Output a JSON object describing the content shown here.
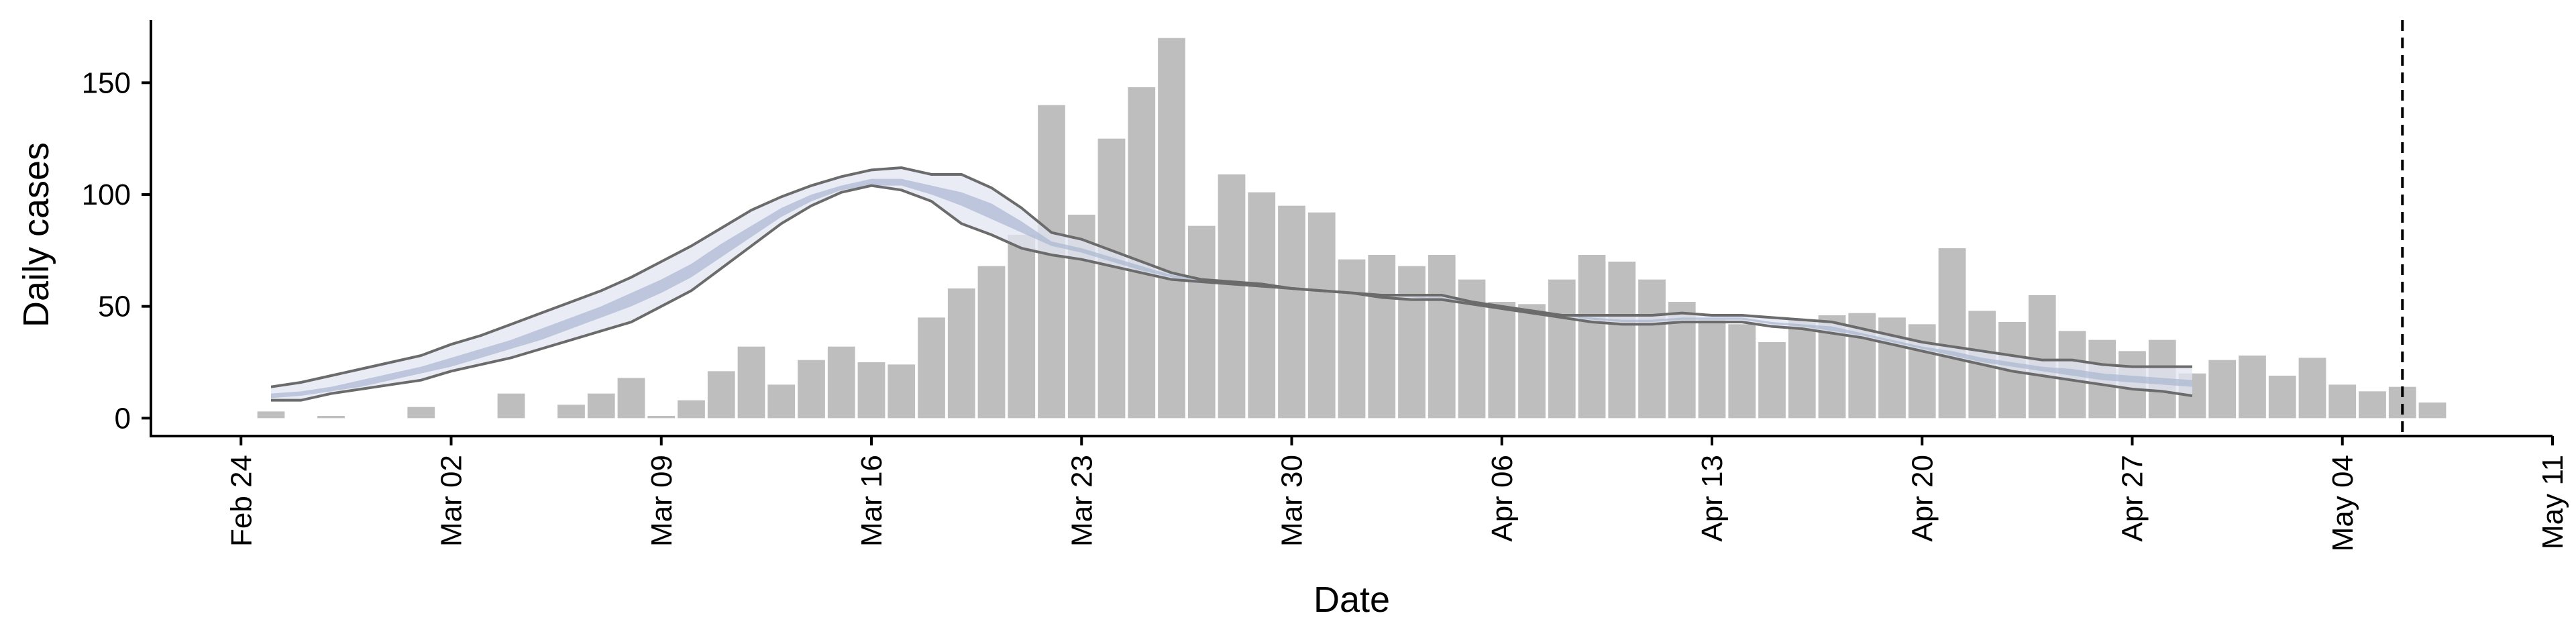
{
  "chart_data": {
    "type": "bar",
    "xlabel": "Date",
    "ylabel": "Daily cases",
    "x_start": "2020-02-21",
    "x_end": "2020-05-11",
    "ylim": [
      -8,
      178
    ],
    "grid": false,
    "legend": "none",
    "x_ticks": [
      {
        "date": "2020-02-24",
        "label": "Feb 24"
      },
      {
        "date": "2020-03-02",
        "label": "Mar 02"
      },
      {
        "date": "2020-03-09",
        "label": "Mar 09"
      },
      {
        "date": "2020-03-16",
        "label": "Mar 16"
      },
      {
        "date": "2020-03-23",
        "label": "Mar 23"
      },
      {
        "date": "2020-03-30",
        "label": "Mar 30"
      },
      {
        "date": "2020-04-06",
        "label": "Apr 06"
      },
      {
        "date": "2020-04-13",
        "label": "Apr 13"
      },
      {
        "date": "2020-04-20",
        "label": "Apr 20"
      },
      {
        "date": "2020-04-27",
        "label": "Apr 27"
      },
      {
        "date": "2020-05-04",
        "label": "May 04"
      },
      {
        "date": "2020-05-11",
        "label": "May 11"
      }
    ],
    "y_ticks": [
      0,
      50,
      100,
      150
    ],
    "vline_date": "2020-05-06",
    "bars_start": "2020-02-25",
    "bars": [
      3,
      0,
      1,
      0,
      0,
      5,
      0,
      0,
      11,
      0,
      6,
      11,
      18,
      1,
      8,
      21,
      32,
      15,
      26,
      32,
      25,
      24,
      45,
      58,
      68,
      82,
      140,
      91,
      125,
      148,
      170,
      86,
      109,
      101,
      95,
      92,
      71,
      73,
      68,
      73,
      62,
      52,
      51,
      62,
      73,
      70,
      62,
      52,
      44,
      42,
      34,
      44,
      46,
      47,
      45,
      42,
      76,
      48,
      43,
      55,
      39,
      35,
      30,
      35,
      20,
      26,
      28,
      19,
      27,
      15,
      12,
      14,
      7
    ],
    "band_start": "2020-02-25",
    "band_upper": [
      14,
      16,
      19,
      22,
      25,
      28,
      33,
      37,
      42,
      47,
      52,
      57,
      63,
      70,
      77,
      85,
      93,
      99,
      104,
      108,
      111,
      112,
      109,
      109,
      103,
      94,
      83,
      80,
      75,
      70,
      65,
      62,
      61,
      60,
      58,
      57,
      56,
      55,
      55,
      55,
      52,
      50,
      48,
      46,
      46,
      46,
      46,
      47,
      46,
      46,
      45,
      44,
      43,
      40,
      37,
      34,
      32,
      30,
      28,
      26,
      26,
      24,
      23,
      23,
      23
    ],
    "band_lower": [
      8,
      8,
      11,
      13,
      15,
      17,
      21,
      24,
      27,
      31,
      35,
      39,
      43,
      50,
      57,
      67,
      77,
      87,
      95,
      101,
      104,
      102,
      97,
      87,
      82,
      76,
      73,
      71,
      68,
      65,
      62,
      61,
      60,
      59,
      58,
      57,
      56,
      54,
      53,
      53,
      51,
      49,
      47,
      45,
      43,
      42,
      42,
      43,
      43,
      43,
      41,
      40,
      38,
      36,
      33,
      30,
      27,
      24,
      21,
      19,
      17,
      15,
      13,
      12,
      10
    ],
    "band_inner_upper": [
      11,
      12,
      14,
      17,
      20,
      23,
      27,
      31,
      35,
      40,
      45,
      50,
      56,
      62,
      69,
      78,
      86,
      94,
      100,
      104,
      107,
      107,
      104,
      101,
      96,
      88,
      79,
      76,
      72,
      68,
      64,
      62,
      61,
      60,
      58,
      57,
      56,
      55,
      54,
      54,
      52,
      50,
      48,
      46,
      45,
      44,
      44,
      45,
      45,
      45,
      43,
      42,
      41,
      38,
      35,
      32,
      30,
      27,
      25,
      23,
      22,
      20,
      19,
      18,
      17
    ],
    "band_inner_lower": [
      9,
      10,
      12,
      14,
      17,
      20,
      23,
      27,
      31,
      35,
      40,
      45,
      50,
      56,
      63,
      72,
      81,
      90,
      97,
      102,
      104,
      104,
      100,
      95,
      89,
      83,
      77,
      74,
      70,
      66,
      63,
      61,
      60,
      59,
      58,
      57,
      56,
      55,
      54,
      53,
      51,
      49,
      48,
      46,
      44,
      43,
      43,
      44,
      44,
      44,
      42,
      41,
      39,
      37,
      34,
      31,
      28,
      25,
      23,
      21,
      19,
      17,
      16,
      15,
      14
    ]
  }
}
